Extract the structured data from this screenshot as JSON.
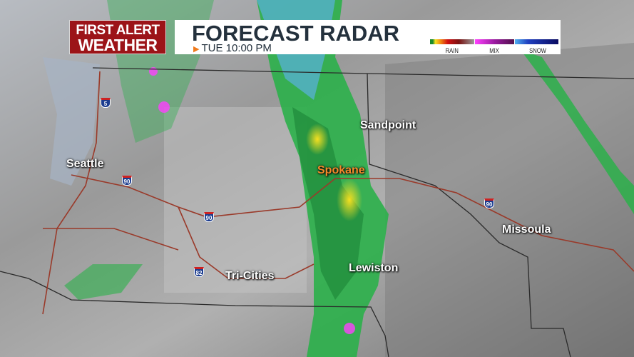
{
  "logo": {
    "line1": "FIRST ALERT",
    "line2": "WEATHER",
    "color": "#9c1418"
  },
  "banner": {
    "title": "FORECAST RADAR",
    "time": "TUE 10:00 PM",
    "play_icon": "triangle-right-icon"
  },
  "legend": {
    "items": [
      {
        "label": "RAIN",
        "gradient": [
          "#1a8a2a",
          "#f5e020",
          "#f08010",
          "#d01010",
          "#7a1010",
          "#9a9a9a"
        ]
      },
      {
        "label": "MIX",
        "gradient": [
          "#ff40ff",
          "#9a1aa0",
          "#50104a"
        ]
      },
      {
        "label": "SNOW",
        "gradient": [
          "#50b0f0",
          "#2040c0",
          "#0a0a60"
        ]
      }
    ]
  },
  "cities": [
    {
      "name": "Seattle",
      "highlight": false
    },
    {
      "name": "Spokane",
      "highlight": true
    },
    {
      "name": "Sandpoint",
      "highlight": false
    },
    {
      "name": "Missoula",
      "highlight": false
    },
    {
      "name": "Tri-Cities",
      "highlight": false
    },
    {
      "name": "Lewiston",
      "highlight": false
    }
  ],
  "highways": [
    "5",
    "90",
    "90",
    "82",
    "90"
  ],
  "colors": {
    "highlight_city": "#f5892a",
    "radar_green": "#2bb04a",
    "border": "#9a3a2a"
  }
}
